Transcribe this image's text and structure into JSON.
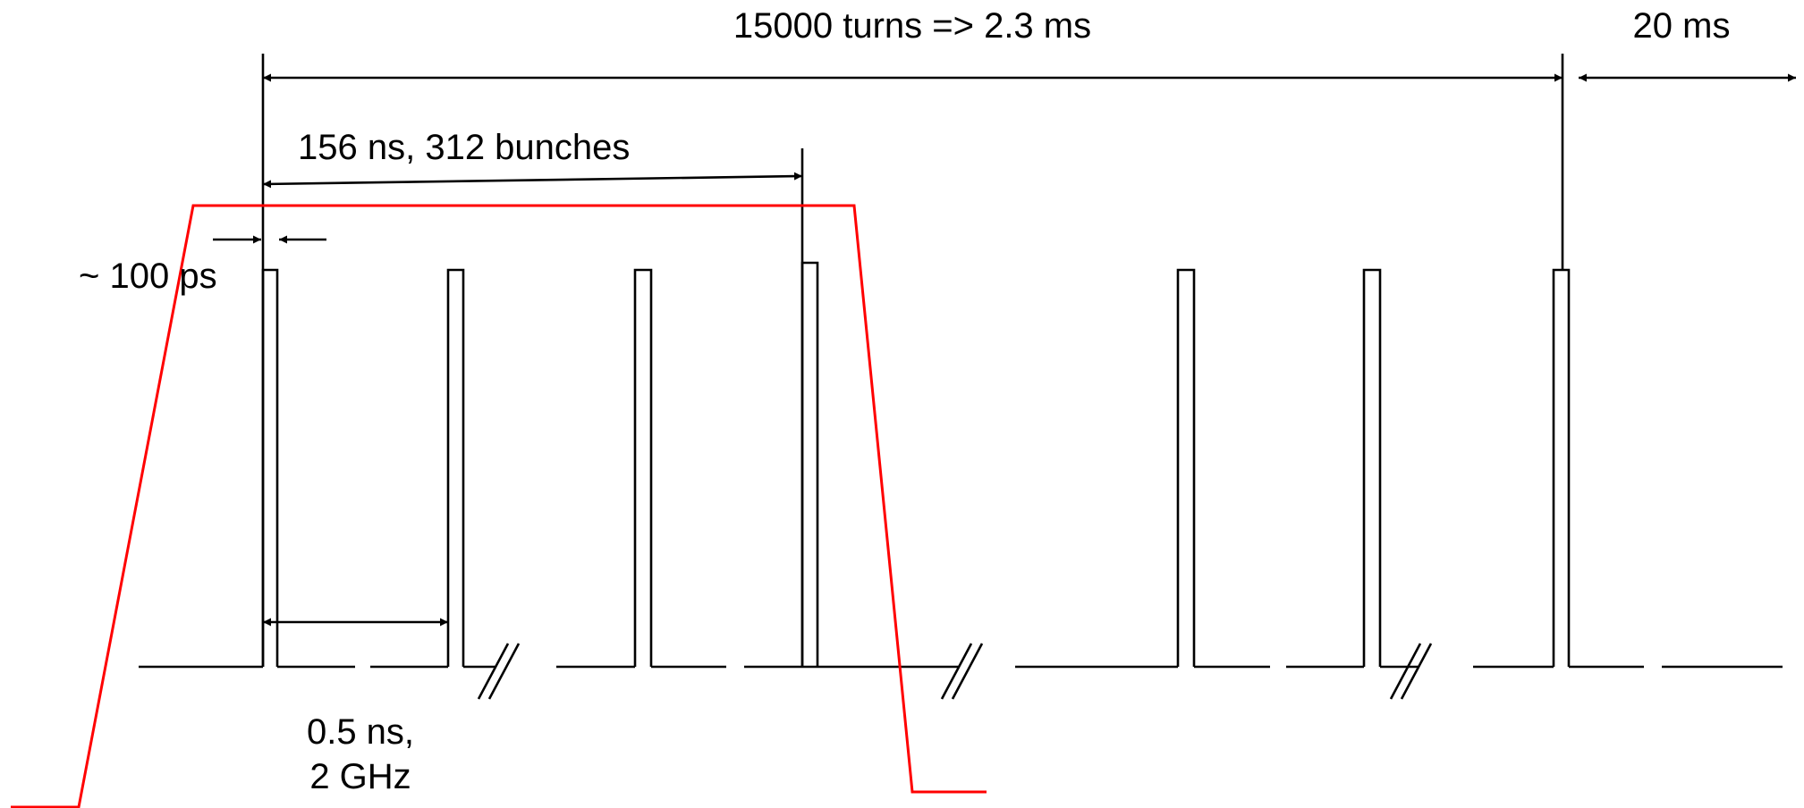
{
  "labels": {
    "turns": "15000 turns => 2.3 ms",
    "gap": "20 ms",
    "train": "156 ns, 312 bunches",
    "bunch_length": "~ 100 ps",
    "spacing_line1": "0.5 ns,",
    "spacing_line2": "2 GHz"
  },
  "colors": {
    "pulse_envelope": "#ff0000",
    "bunches": "#000000"
  }
}
